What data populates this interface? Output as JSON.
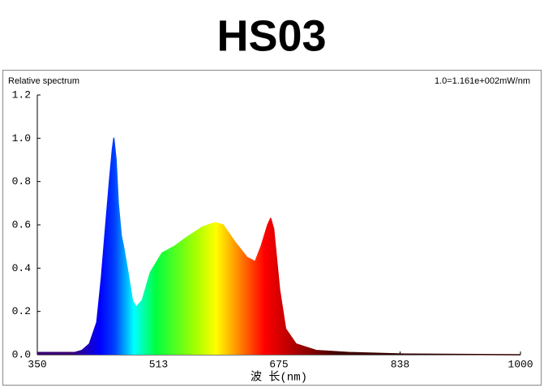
{
  "chart_data": {
    "type": "area",
    "title": "HS03",
    "subtitle": "Relative spectrum",
    "annotation": "1.0=1.161e+002mW/nm",
    "x_label": "波 长(nm)",
    "x": [
      350,
      400,
      410,
      420,
      430,
      436,
      442,
      447,
      451,
      453,
      456,
      459,
      463,
      466,
      472,
      478,
      483,
      491,
      502,
      518,
      534,
      550,
      572,
      589,
      600,
      616,
      632,
      643,
      651,
      660,
      664,
      668,
      676,
      684,
      698,
      725,
      769,
      845,
      1000
    ],
    "series": [
      {
        "name": "Relative spectrum",
        "values": [
          0.01,
          0.01,
          0.02,
          0.05,
          0.15,
          0.35,
          0.6,
          0.8,
          0.95,
          1.0,
          0.9,
          0.7,
          0.55,
          0.5,
          0.38,
          0.25,
          0.22,
          0.25,
          0.38,
          0.47,
          0.5,
          0.54,
          0.59,
          0.61,
          0.6,
          0.52,
          0.45,
          0.43,
          0.5,
          0.6,
          0.63,
          0.58,
          0.3,
          0.12,
          0.05,
          0.02,
          0.01,
          0.003,
          0
        ]
      }
    ],
    "xlim": [
      350,
      1000
    ],
    "xticks": [
      350,
      513,
      675,
      838,
      1000
    ],
    "ylim": [
      0,
      1.2
    ],
    "yticks": [
      {
        "value": 0,
        "label": "0.0"
      },
      0.2,
      0.4,
      0.6,
      0.8,
      {
        "value": 1,
        "label": "1.0"
      },
      1.2
    ],
    "grid": false
  }
}
